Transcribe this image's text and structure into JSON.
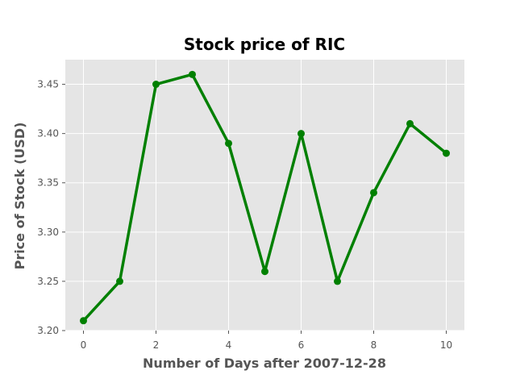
{
  "chart_data": {
    "type": "line",
    "title": "Stock price of RIC",
    "xlabel": "Number of Days after 2007-12-28",
    "ylabel": "Price of Stock (USD)",
    "x": [
      0,
      1,
      2,
      3,
      4,
      5,
      6,
      7,
      8,
      9,
      10
    ],
    "series": [
      {
        "values": [
          3.21,
          3.25,
          3.45,
          3.46,
          3.39,
          3.26,
          3.4,
          3.25,
          3.34,
          3.41,
          3.38
        ]
      }
    ],
    "xlim": [
      -0.5,
      10.5
    ],
    "ylim": [
      3.2,
      3.475
    ],
    "xticks": [
      0,
      2,
      4,
      6,
      8,
      10
    ],
    "yticks": [
      "3.20",
      "3.25",
      "3.30",
      "3.35",
      "3.40",
      "3.45"
    ],
    "grid": true,
    "colors": {
      "line": "#008000",
      "plot_background": "#e5e5e5",
      "grid": "#ffffff"
    }
  }
}
